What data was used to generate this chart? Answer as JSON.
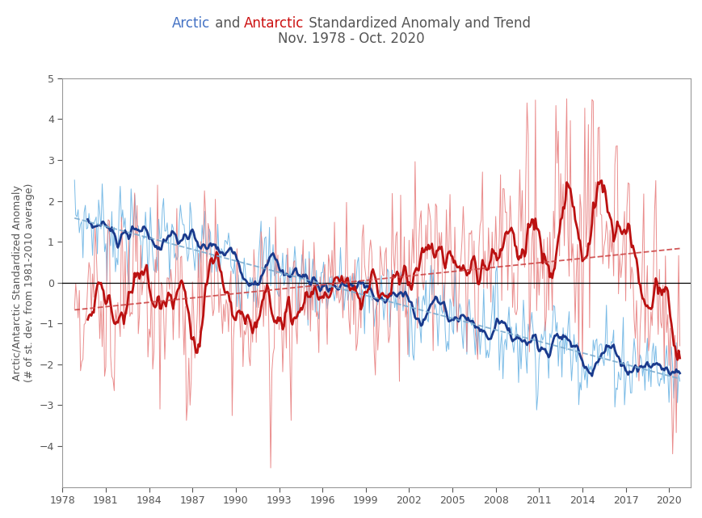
{
  "title_line1": "Arctic",
  "title_and": " and ",
  "title_antarctic": "Antarctic",
  "title_rest": " Standardized Anomaly and Trend",
  "title_line2": "Nov. 1978 - Oct. 2020",
  "ylabel": "Arctic/Antarctic Standardized Anomaly\n(# of st. dev. from 1981-2010 average)",
  "xlim": [
    1978.0,
    2021.5
  ],
  "ylim": [
    -5,
    5
  ],
  "yticks": [
    -4,
    -3,
    -2,
    -1,
    0,
    1,
    2,
    3,
    4,
    5
  ],
  "xticks": [
    1978,
    1981,
    1984,
    1987,
    1990,
    1993,
    1996,
    1999,
    2002,
    2005,
    2008,
    2011,
    2014,
    2017,
    2020
  ],
  "arctic_color_thin": "#6CB4E4",
  "arctic_color_thick": "#1A3A8C",
  "antarctic_color_thin": "#E88080",
  "antarctic_color_thick": "#BB1111",
  "trend_arctic_color": "#7AABCF",
  "trend_antarctic_color": "#CC4444",
  "thin_lw": 0.7,
  "thick_lw": 2.0,
  "trend_lw": 1.3,
  "background_color": "#FFFFFF",
  "title_fontsize": 12,
  "subtitle_fontsize": 12,
  "axis_label_fontsize": 9,
  "tick_fontsize": 9,
  "arctic_title_color": "#4472C4",
  "antarctic_title_color": "#CC1111",
  "text_color": "#555555"
}
